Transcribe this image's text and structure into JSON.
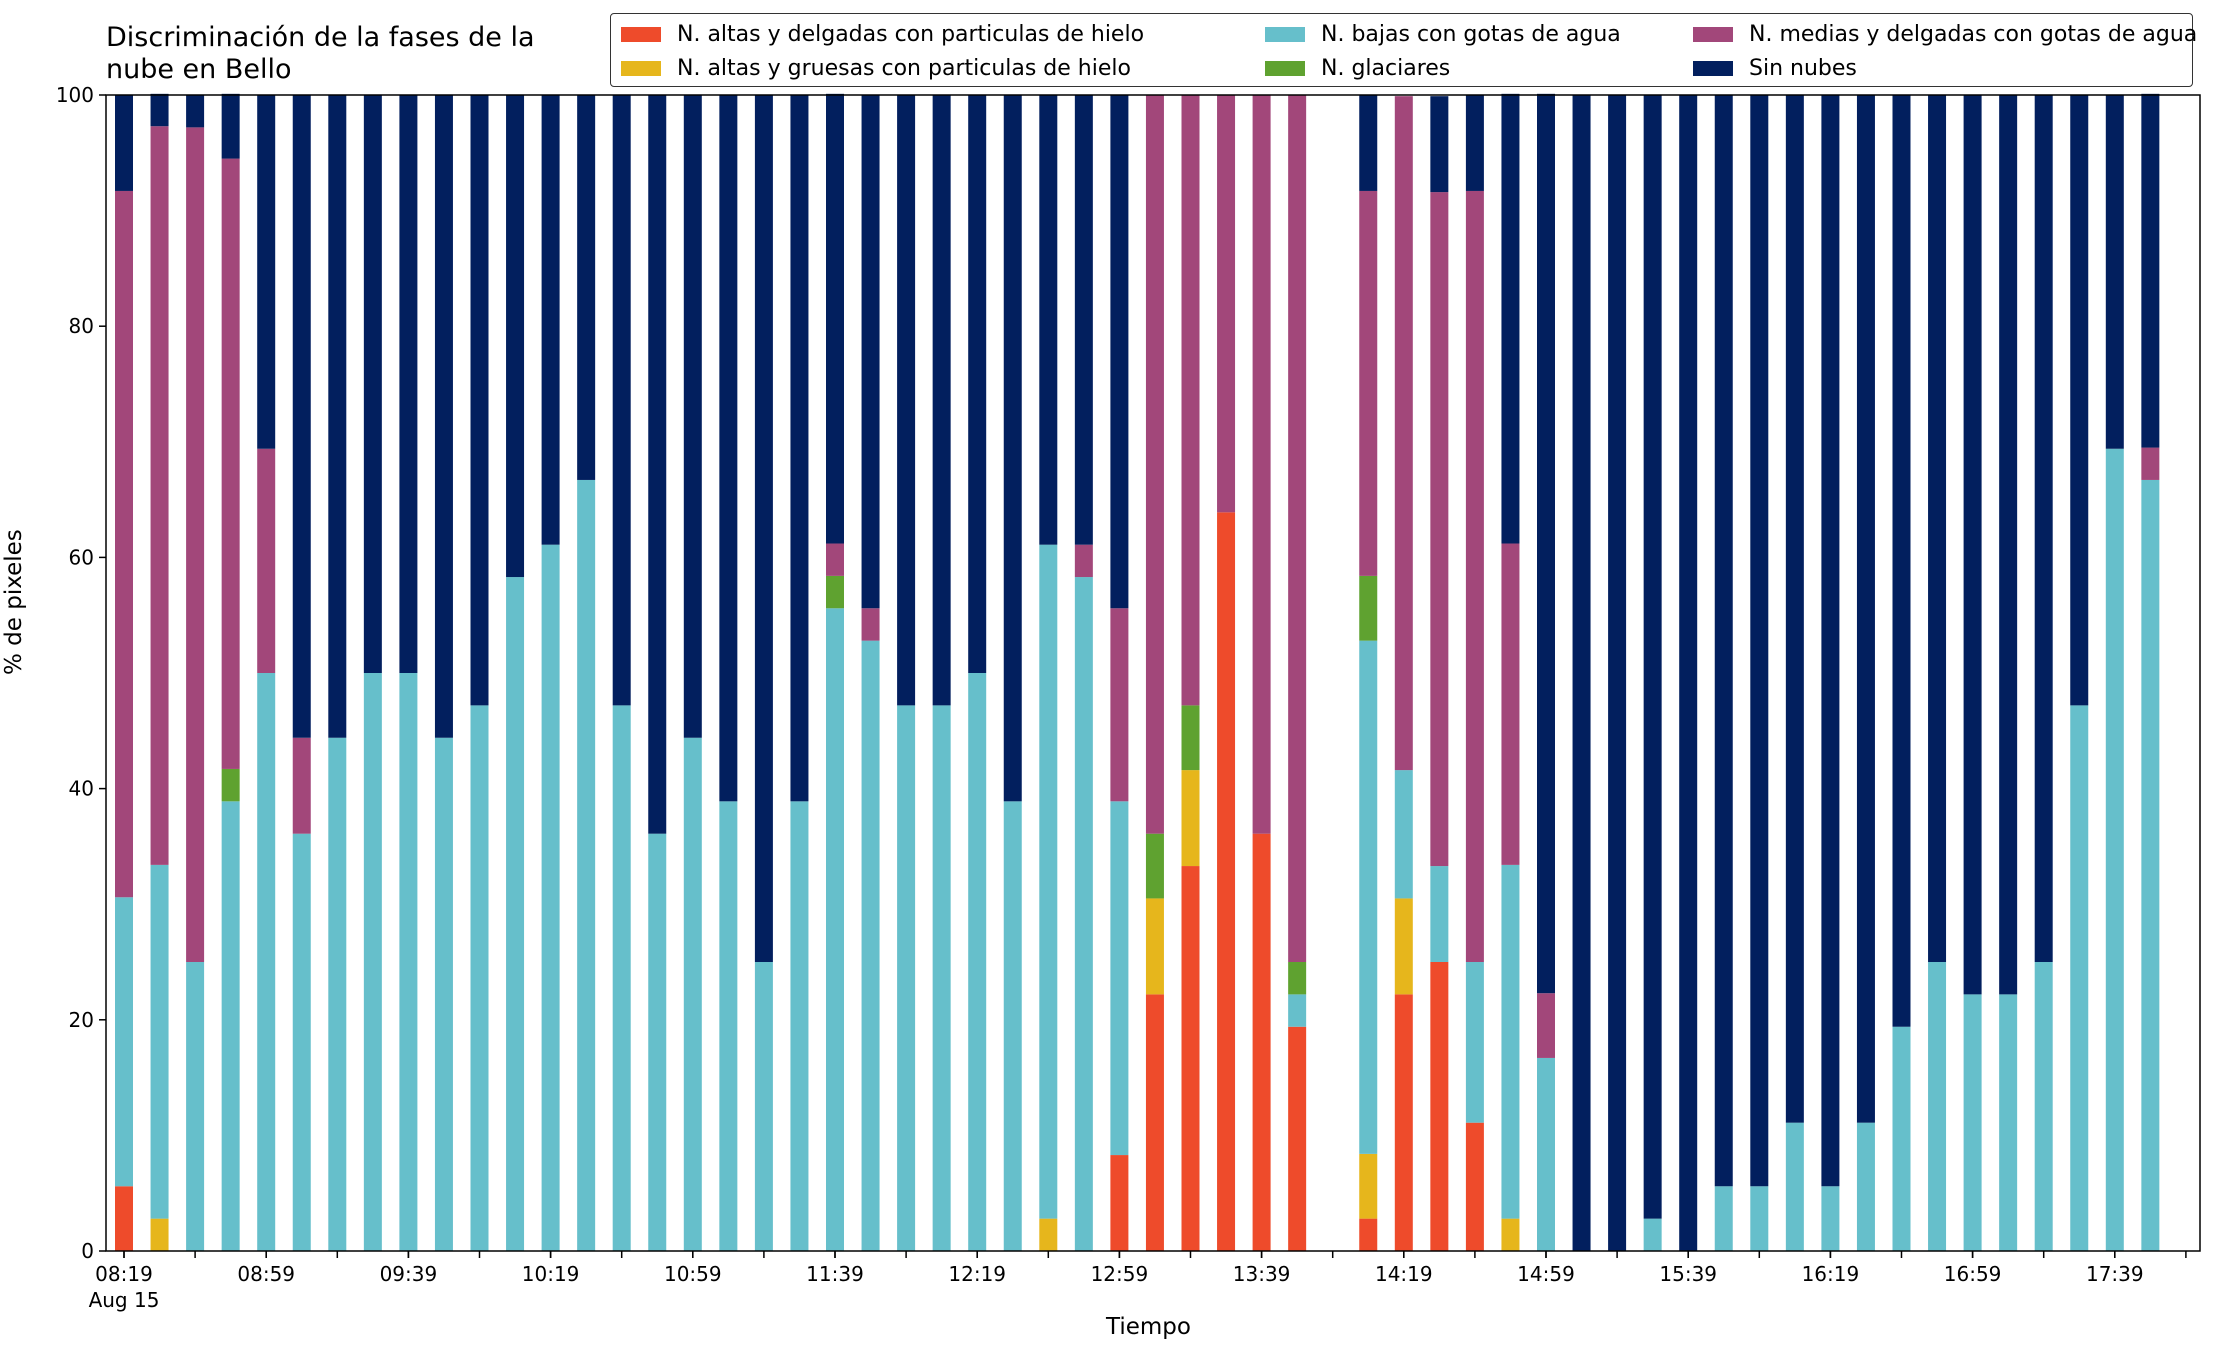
{
  "chart_data": {
    "type": "bar",
    "stacked": true,
    "title": "Discriminación de la fases de la\nnube en Bello",
    "xlabel": "Tiempo",
    "ylabel": "% de pixeles",
    "ylim": [
      0,
      100
    ],
    "y_ticks": [
      "0",
      "20",
      "40",
      "60",
      "80",
      "100"
    ],
    "x_tick_labels": [
      "08:19",
      "08:59",
      "09:39",
      "10:19",
      "10:59",
      "11:39",
      "12:19",
      "12:59",
      "13:39",
      "14:19",
      "14:59",
      "15:39",
      "16:19",
      "16:59",
      "17:39"
    ],
    "x_date_label": "Aug 15",
    "legend_position": "top-right",
    "grid": false,
    "categories": [
      "08:19",
      "08:29",
      "08:39",
      "08:49",
      "08:59",
      "09:09",
      "09:19",
      "09:29",
      "09:39",
      "09:49",
      "09:59",
      "10:09",
      "10:19",
      "10:29",
      "10:39",
      "10:49",
      "10:59",
      "11:09",
      "11:19",
      "11:29",
      "11:39",
      "11:49",
      "11:59",
      "12:09",
      "12:19",
      "12:29",
      "12:39",
      "12:49",
      "12:59",
      "13:09",
      "13:19",
      "13:29",
      "13:39",
      "13:49",
      "13:59",
      "14:09",
      "14:19",
      "14:29",
      "14:39",
      "14:49",
      "14:59",
      "15:09",
      "15:19",
      "15:29",
      "15:39",
      "15:49",
      "15:59",
      "16:09",
      "16:19",
      "16:29",
      "16:39",
      "16:49",
      "16:59",
      "17:09",
      "17:19",
      "17:29",
      "17:39",
      "17:49"
    ],
    "series": [
      {
        "name": "N. altas y delgadas con particulas de hielo",
        "color": "#EE4B2B",
        "values": [
          5.6,
          0,
          0,
          0,
          0,
          0,
          0,
          0,
          0,
          0,
          0,
          0,
          0,
          0,
          0,
          0,
          0,
          0,
          0,
          0,
          0,
          0,
          0,
          0,
          0,
          0,
          0,
          0,
          8.3,
          22.2,
          33.3,
          63.9,
          36.1,
          19.4,
          null,
          2.8,
          22.2,
          25.0,
          11.1,
          0,
          0,
          0,
          0,
          0,
          0,
          0,
          0,
          0,
          0,
          0,
          0,
          0,
          0,
          0,
          0,
          0,
          0,
          0
        ]
      },
      {
        "name": "N. altas y gruesas con particulas de hielo",
        "color": "#E6B61C",
        "values": [
          0,
          2.8,
          0,
          0,
          0,
          0,
          0,
          0,
          0,
          0,
          0,
          0,
          0,
          0,
          0,
          0,
          0,
          0,
          0,
          0,
          0,
          0,
          0,
          0,
          0,
          0,
          2.8,
          0,
          0,
          8.3,
          8.3,
          0,
          0,
          0,
          null,
          5.6,
          8.3,
          0,
          0,
          2.8,
          0,
          0,
          0,
          0,
          0,
          0,
          0,
          0,
          0,
          0,
          0,
          0,
          0,
          0,
          0,
          0,
          0,
          0
        ]
      },
      {
        "name": "N. bajas con gotas de agua",
        "color": "#66BFCB",
        "values": [
          25.0,
          30.6,
          25.0,
          38.9,
          50.0,
          36.1,
          44.4,
          50.0,
          50.0,
          44.4,
          47.2,
          58.3,
          61.1,
          66.7,
          47.2,
          36.1,
          44.4,
          38.9,
          25.0,
          38.9,
          55.6,
          52.8,
          47.2,
          47.2,
          50.0,
          38.9,
          58.3,
          58.3,
          30.6,
          0,
          0,
          0,
          0,
          2.8,
          null,
          44.4,
          11.1,
          8.3,
          13.9,
          30.6,
          16.7,
          0,
          0,
          2.8,
          0,
          5.6,
          5.6,
          11.1,
          5.6,
          11.1,
          19.4,
          25.0,
          22.2,
          22.2,
          25.0,
          47.2,
          69.4,
          66.7
        ]
      },
      {
        "name": "N. glaciares",
        "color": "#5FA230",
        "values": [
          0,
          0,
          0,
          2.8,
          0,
          0,
          0,
          0,
          0,
          0,
          0,
          0,
          0,
          0,
          0,
          0,
          0,
          0,
          0,
          0,
          2.8,
          0,
          0,
          0,
          0,
          0,
          0,
          0,
          0,
          5.6,
          5.6,
          0,
          0,
          2.8,
          null,
          5.6,
          0,
          0,
          0,
          0,
          0,
          0,
          0,
          0,
          0,
          0,
          0,
          0,
          0,
          0,
          0,
          0,
          0,
          0,
          0,
          0,
          0,
          0
        ]
      },
      {
        "name": "N. medias y delgadas con gotas de agua",
        "color": "#A2477A",
        "values": [
          61.1,
          63.9,
          72.2,
          52.8,
          19.4,
          8.3,
          0,
          0,
          0,
          0,
          0,
          0,
          0,
          0,
          0,
          0,
          0,
          0,
          0,
          0,
          2.8,
          2.8,
          0,
          0,
          0,
          0,
          0,
          2.8,
          16.7,
          63.9,
          52.8,
          36.1,
          63.9,
          75.0,
          null,
          33.3,
          58.3,
          58.3,
          66.7,
          27.8,
          5.6,
          0,
          0,
          0,
          0,
          0,
          0,
          0,
          0,
          0,
          0,
          0,
          0,
          0,
          0,
          0,
          0,
          2.8
        ]
      },
      {
        "name": "Sin nubes",
        "color": "#021F5E",
        "values": [
          8.3,
          2.8,
          2.8,
          5.6,
          30.6,
          55.6,
          55.6,
          50.0,
          50.0,
          55.6,
          52.8,
          41.7,
          38.9,
          33.3,
          52.8,
          63.9,
          55.6,
          61.1,
          75.0,
          61.1,
          38.9,
          44.4,
          52.8,
          52.8,
          50.0,
          61.1,
          38.9,
          38.9,
          44.4,
          0,
          0,
          0,
          0,
          0,
          null,
          8.3,
          0,
          8.3,
          8.3,
          38.9,
          77.8,
          100,
          100,
          97.2,
          100,
          94.4,
          94.4,
          88.9,
          94.4,
          88.9,
          80.6,
          75.0,
          77.8,
          77.8,
          75.0,
          52.8,
          30.6,
          30.6
        ]
      }
    ]
  }
}
